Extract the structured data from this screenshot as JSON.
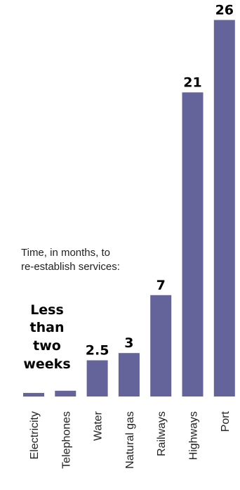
{
  "chart_data": {
    "type": "bar",
    "title": "",
    "annotation": [
      "Time, in months, to",
      "re-establish services:"
    ],
    "categories": [
      "Electricity",
      "Telephones",
      "Water",
      "Natural gas",
      "Railways",
      "Highways",
      "Port"
    ],
    "values": [
      0.25,
      0.4,
      2.5,
      3,
      7,
      21,
      26
    ],
    "value_labels": [
      "",
      "",
      "2.5",
      "3",
      "7",
      "21",
      "26"
    ],
    "group_label": [
      "Less",
      "than",
      "two",
      "weeks"
    ],
    "bar_color": "#64639a",
    "unit": "months",
    "grid": false,
    "legend": "none"
  }
}
